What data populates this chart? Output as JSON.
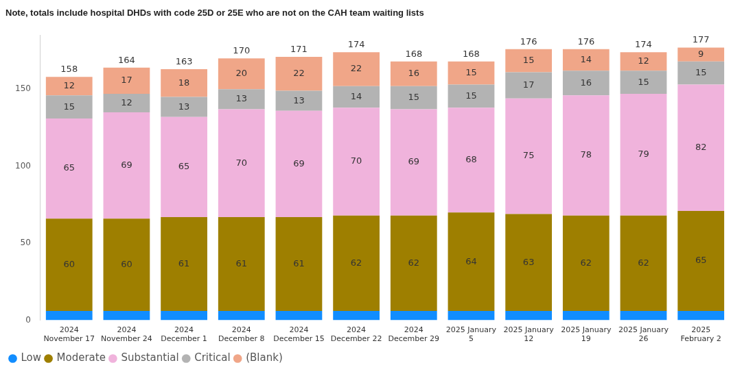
{
  "chart_data": {
    "type": "bar",
    "stacked": true,
    "title": "Note, totals include hospital DHDs with code 25D or 25E who are not on the CAH team waiting lists",
    "categories": [
      "2024 November 17",
      "2024 November 24",
      "2024 December 1",
      "2024 December 8",
      "2024 December 15",
      "2024 December 22",
      "2024 December 29",
      "2025 January 5",
      "2025 January 12",
      "2025 January 19",
      "2025 January 26",
      "2025 February 2"
    ],
    "series": [
      {
        "name": "Low",
        "color": "#118dff",
        "values": [
          6,
          6,
          6,
          6,
          6,
          6,
          6,
          6,
          6,
          6,
          6,
          6
        ]
      },
      {
        "name": "Moderate",
        "color": "#9e7f00",
        "values": [
          60,
          60,
          61,
          61,
          61,
          62,
          62,
          64,
          63,
          62,
          62,
          65
        ],
        "value_labels": [
          "60",
          "60",
          "61",
          "61",
          "61",
          "62",
          "62",
          "64",
          "63",
          "62",
          "62",
          "65"
        ]
      },
      {
        "name": "Substantial",
        "color": "#f0b3dc",
        "values": [
          65,
          69,
          65,
          70,
          69,
          70,
          69,
          68,
          75,
          78,
          79,
          82
        ],
        "value_labels": [
          "65",
          "69",
          "65",
          "70",
          "69",
          "70",
          "69",
          "68",
          "75",
          "78",
          "79",
          "82"
        ]
      },
      {
        "name": "Critical",
        "color": "#b3b3b3",
        "values": [
          15,
          12,
          13,
          13,
          13,
          14,
          15,
          15,
          17,
          16,
          15,
          15
        ],
        "value_labels": [
          "15",
          "12",
          "13",
          "13",
          "13",
          "14",
          "15",
          "15",
          "17",
          "16",
          "15",
          "15"
        ]
      },
      {
        "name": "(Blank)",
        "color": "#f0a688",
        "values": [
          12,
          17,
          18,
          20,
          22,
          22,
          16,
          15,
          15,
          14,
          12,
          9
        ],
        "value_labels": [
          "12",
          "17",
          "18",
          "20",
          "22",
          "22",
          "16",
          "15",
          "15",
          "14",
          "12",
          "9"
        ]
      }
    ],
    "totals": [
      "158",
      "164",
      "163",
      "170",
      "171",
      "174",
      "168",
      "168",
      "176",
      "176",
      "174",
      "177"
    ],
    "ylim": [
      0,
      185
    ],
    "yticks": [
      0,
      50,
      100,
      150
    ],
    "grid": false,
    "legend": "bottom left"
  }
}
